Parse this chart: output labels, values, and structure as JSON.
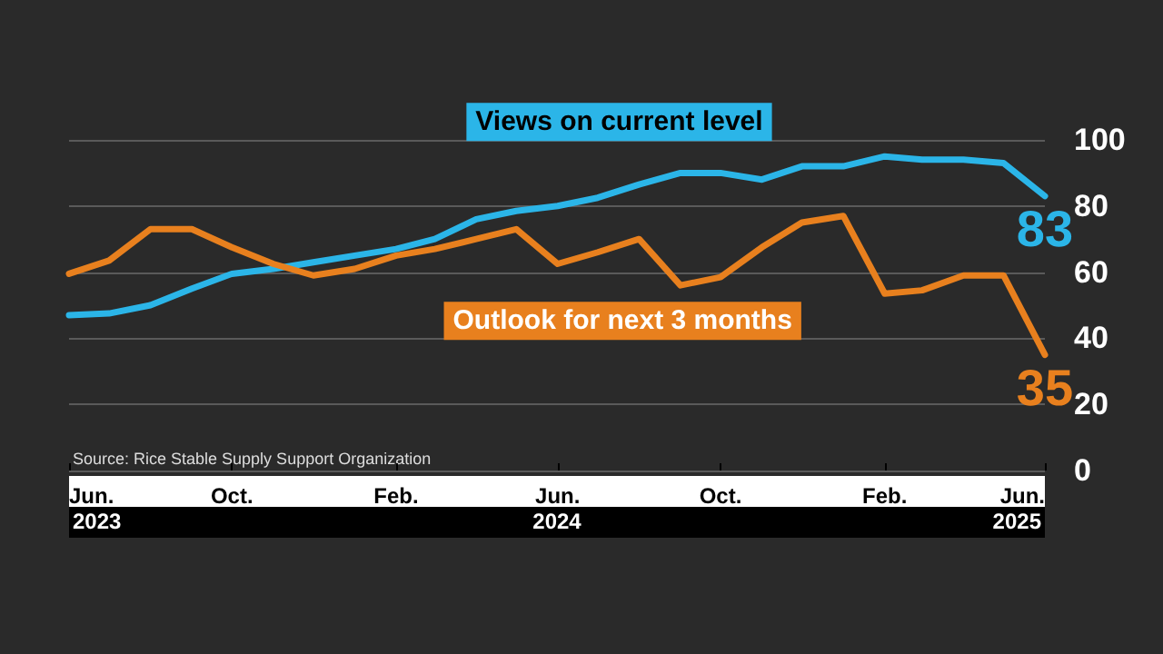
{
  "chart_data": {
    "type": "line",
    "x": [
      "2023-06",
      "2023-07",
      "2023-08",
      "2023-09",
      "2023-10",
      "2023-11",
      "2023-12",
      "2024-01",
      "2024-02",
      "2024-03",
      "2024-04",
      "2024-05",
      "2024-06",
      "2024-07",
      "2024-08",
      "2024-09",
      "2024-10",
      "2024-11",
      "2024-12",
      "2025-01",
      "2025-02",
      "2025-03",
      "2025-04",
      "2025-05",
      "2025-06"
    ],
    "series": [
      {
        "name": "Views on current level",
        "color": "#2bb5e8",
        "values": [
          47,
          47.5,
          50,
          55,
          59.5,
          61,
          63,
          65,
          67,
          70,
          76,
          78.5,
          80,
          82.5,
          86.5,
          90,
          90,
          88,
          92,
          92,
          95,
          94,
          94,
          93,
          83
        ],
        "value_labels": [
          null,
          null,
          null,
          null,
          null,
          null,
          null,
          null,
          null,
          null,
          null,
          null,
          null,
          null,
          null,
          null,
          null,
          null,
          null,
          null,
          null,
          null,
          null,
          null,
          "83"
        ]
      },
      {
        "name": "Outlook for next 3 months",
        "color": "#e8801e",
        "values": [
          59.5,
          63.5,
          73,
          73,
          67.5,
          62.5,
          59,
          61,
          65,
          67,
          70,
          73,
          62.5,
          66,
          70,
          56,
          58.5,
          67.5,
          75,
          77,
          53.5,
          54.5,
          59,
          59,
          35
        ],
        "value_labels": [
          null,
          null,
          null,
          null,
          null,
          null,
          null,
          null,
          null,
          null,
          null,
          null,
          null,
          null,
          null,
          null,
          null,
          null,
          null,
          null,
          null,
          null,
          null,
          null,
          "35"
        ]
      }
    ],
    "xlim": [
      "2023-06",
      "2025-06"
    ],
    "xticks": [
      {
        "value": "2023-06",
        "label": "Jun."
      },
      {
        "value": "2023-10",
        "label": "Oct."
      },
      {
        "value": "2024-02",
        "label": "Feb."
      },
      {
        "value": "2024-06",
        "label": "Jun."
      },
      {
        "value": "2024-10",
        "label": "Oct."
      },
      {
        "value": "2025-02",
        "label": "Feb."
      },
      {
        "value": "2025-06",
        "label": "Jun."
      }
    ],
    "ylim": [
      0,
      100
    ],
    "yticks": [
      0,
      20,
      40,
      60,
      80,
      100
    ],
    "grid": "y",
    "legend": false,
    "marker": "none",
    "line_style": "solid",
    "annotations": [
      "Source: Rice Stable Supply Support Organization",
      "2023",
      "2024",
      "2025"
    ]
  }
}
